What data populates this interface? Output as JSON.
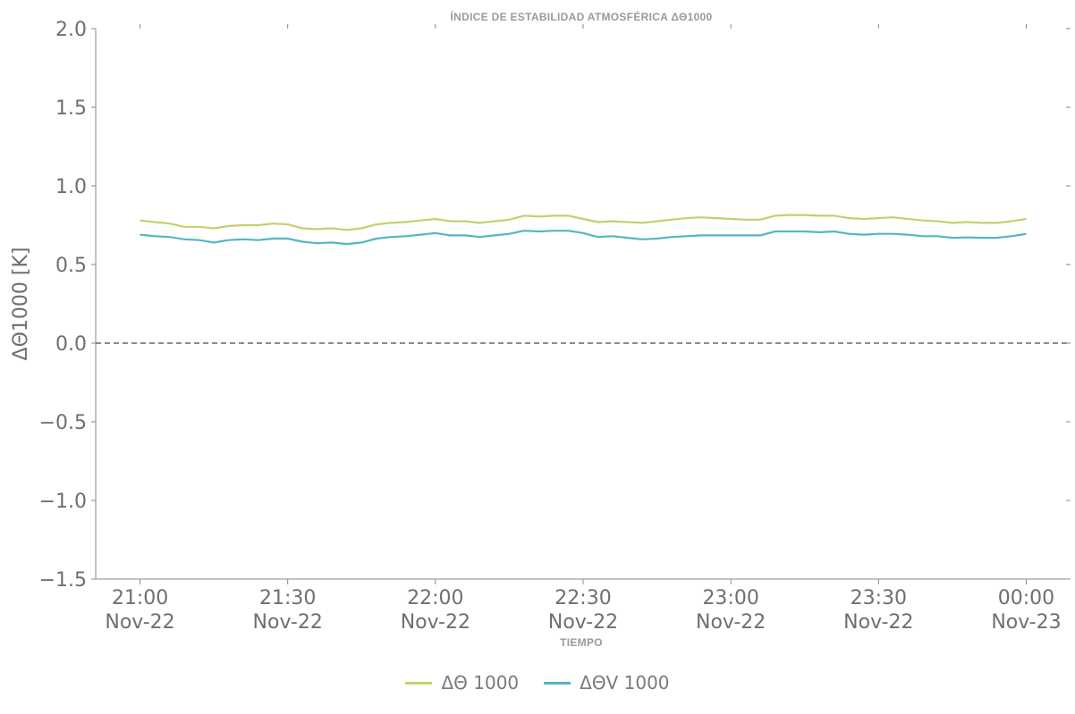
{
  "chart_data": {
    "type": "line",
    "title": "ÍNDICE DE ESTABILIDAD ATMOSFÉRICA ΔΘ1000",
    "xlabel": "TIEMPO",
    "ylabel": "ΔΘ1000 [K]",
    "ylim": [
      -1.5,
      2.0
    ],
    "yticks": [
      -1.5,
      -1.0,
      -0.5,
      0.0,
      0.5,
      1.0,
      1.5,
      2.0
    ],
    "ytick_labels": [
      "−1.5",
      "−1.0",
      "−0.5",
      "0.0",
      "0.5",
      "1.0",
      "1.5",
      "2.0"
    ],
    "xlim": [
      "2022-11-22 20:51",
      "2022-11-23 00:09"
    ],
    "xticks": [
      {
        "time": "21:00",
        "date": "Nov-22"
      },
      {
        "time": "21:30",
        "date": "Nov-22"
      },
      {
        "time": "22:00",
        "date": "Nov-22"
      },
      {
        "time": "22:30",
        "date": "Nov-22"
      },
      {
        "time": "23:00",
        "date": "Nov-22"
      },
      {
        "time": "23:30",
        "date": "Nov-22"
      },
      {
        "time": "00:00",
        "date": "Nov-23"
      }
    ],
    "reference_line": {
      "y": 0.0,
      "style": "dashed",
      "color": "#666666"
    },
    "x": [
      "2022-11-22 21:00",
      "2022-11-22 21:03",
      "2022-11-22 21:06",
      "2022-11-22 21:09",
      "2022-11-22 21:12",
      "2022-11-22 21:15",
      "2022-11-22 21:18",
      "2022-11-22 21:21",
      "2022-11-22 21:24",
      "2022-11-22 21:27",
      "2022-11-22 21:30",
      "2022-11-22 21:33",
      "2022-11-22 21:36",
      "2022-11-22 21:39",
      "2022-11-22 21:42",
      "2022-11-22 21:45",
      "2022-11-22 21:48",
      "2022-11-22 21:51",
      "2022-11-22 21:54",
      "2022-11-22 21:57",
      "2022-11-22 22:00",
      "2022-11-22 22:03",
      "2022-11-22 22:06",
      "2022-11-22 22:09",
      "2022-11-22 22:12",
      "2022-11-22 22:15",
      "2022-11-22 22:18",
      "2022-11-22 22:21",
      "2022-11-22 22:24",
      "2022-11-22 22:27",
      "2022-11-22 22:30",
      "2022-11-22 22:33",
      "2022-11-22 22:36",
      "2022-11-22 22:39",
      "2022-11-22 22:42",
      "2022-11-22 22:45",
      "2022-11-22 22:48",
      "2022-11-22 22:51",
      "2022-11-22 22:54",
      "2022-11-22 22:57",
      "2022-11-22 23:00",
      "2022-11-22 23:03",
      "2022-11-22 23:06",
      "2022-11-22 23:09",
      "2022-11-22 23:12",
      "2022-11-22 23:15",
      "2022-11-22 23:18",
      "2022-11-22 23:21",
      "2022-11-22 23:24",
      "2022-11-22 23:27",
      "2022-11-22 23:30",
      "2022-11-22 23:33",
      "2022-11-22 23:36",
      "2022-11-22 23:39",
      "2022-11-22 23:42",
      "2022-11-22 23:45",
      "2022-11-22 23:48",
      "2022-11-22 23:51",
      "2022-11-22 23:54",
      "2022-11-22 23:57",
      "2022-11-23 00:00"
    ],
    "series": [
      {
        "name": "ΔΘ 1000",
        "color": "#c8ce6e",
        "values": [
          0.78,
          0.77,
          0.76,
          0.74,
          0.74,
          0.73,
          0.745,
          0.75,
          0.75,
          0.76,
          0.755,
          0.73,
          0.725,
          0.73,
          0.72,
          0.73,
          0.755,
          0.765,
          0.77,
          0.78,
          0.79,
          0.775,
          0.775,
          0.765,
          0.775,
          0.785,
          0.81,
          0.805,
          0.81,
          0.81,
          0.79,
          0.77,
          0.775,
          0.77,
          0.765,
          0.775,
          0.785,
          0.795,
          0.8,
          0.795,
          0.79,
          0.785,
          0.785,
          0.81,
          0.815,
          0.815,
          0.81,
          0.81,
          0.795,
          0.79,
          0.795,
          0.8,
          0.79,
          0.78,
          0.775,
          0.765,
          0.77,
          0.765,
          0.765,
          0.775,
          0.79
        ]
      },
      {
        "name": "ΔΘV 1000",
        "color": "#55b6c2",
        "values": [
          0.69,
          0.68,
          0.675,
          0.66,
          0.655,
          0.64,
          0.655,
          0.66,
          0.655,
          0.665,
          0.665,
          0.645,
          0.635,
          0.64,
          0.63,
          0.64,
          0.665,
          0.675,
          0.68,
          0.69,
          0.7,
          0.685,
          0.685,
          0.675,
          0.685,
          0.695,
          0.715,
          0.71,
          0.715,
          0.715,
          0.7,
          0.675,
          0.68,
          0.67,
          0.66,
          0.665,
          0.675,
          0.68,
          0.685,
          0.685,
          0.685,
          0.685,
          0.685,
          0.71,
          0.71,
          0.71,
          0.705,
          0.71,
          0.695,
          0.69,
          0.695,
          0.695,
          0.69,
          0.68,
          0.68,
          0.67,
          0.672,
          0.67,
          0.67,
          0.68,
          0.695
        ]
      }
    ],
    "legend_position": "bottom-center",
    "grid": false
  }
}
